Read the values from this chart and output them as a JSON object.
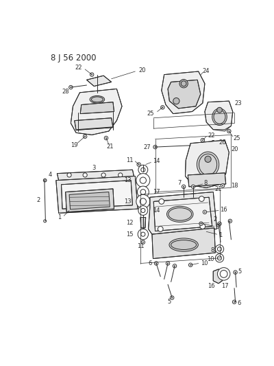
{
  "title": "8 J 56 2000",
  "bg_color": "#ffffff",
  "fig_width": 4.0,
  "fig_height": 5.33,
  "dpi": 100,
  "line_color": "#2a2a2a",
  "lw": 0.7,
  "label_fontsize": 6.0,
  "title_fontsize": 8.5
}
